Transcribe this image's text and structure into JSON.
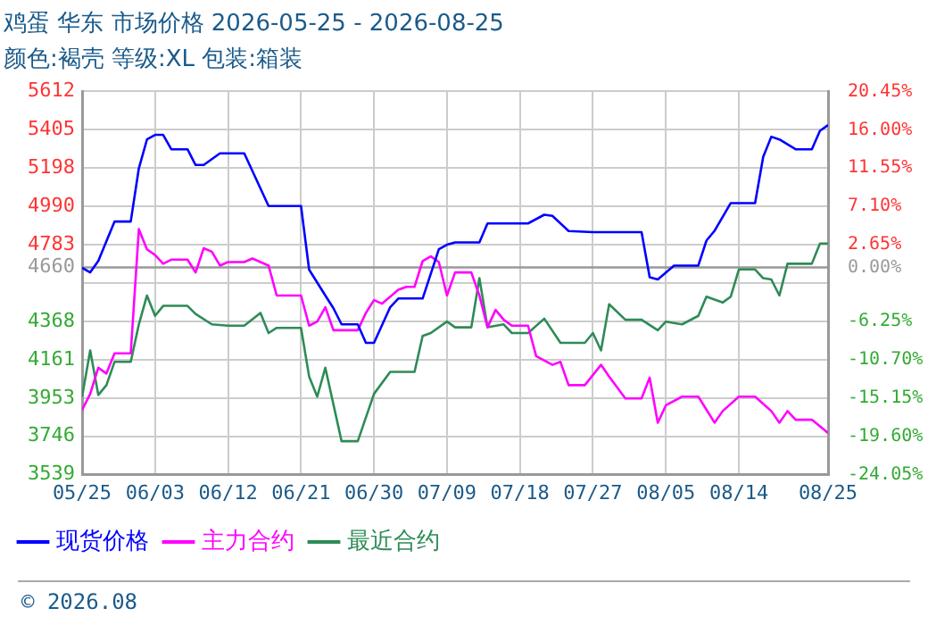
{
  "chart_data": {
    "type": "line",
    "title": "鸡蛋 华东 市场价格 2026-05-25 - 2026-08-25",
    "subtitle": "颜色:褐壳 等级:XL 包装:箱装",
    "xlim": [
      "2026-05-25",
      "2026-08-25"
    ],
    "xticks": [
      {
        "value": "2026-05-25",
        "label": "05/25"
      },
      {
        "value": "2026-06-03",
        "label": "06/03"
      },
      {
        "value": "2026-06-12",
        "label": "06/12"
      },
      {
        "value": "2026-06-21",
        "label": "06/21"
      },
      {
        "value": "2026-06-30",
        "label": "06/30"
      },
      {
        "value": "2026-07-09",
        "label": "07/09"
      },
      {
        "value": "2026-07-18",
        "label": "07/18"
      },
      {
        "value": "2026-07-27",
        "label": "07/27"
      },
      {
        "value": "2026-08-05",
        "label": "08/05"
      },
      {
        "value": "2026-08-14",
        "label": "08/14"
      },
      {
        "value": "2026-08-25",
        "label": "08/25"
      }
    ],
    "ylim": [
      3539,
      5612
    ],
    "yticks": [
      3539,
      3746,
      3953,
      4161,
      4368,
      {
        "value": 4576,
        "label": null
      },
      4783,
      4990,
      5198,
      5405,
      5612
    ],
    "y2lim": [
      -24.05,
      20.45
    ],
    "y2ticks": [
      {
        "value": -24.05,
        "label": "-24.05%"
      },
      {
        "value": -19.6,
        "label": "-19.60%"
      },
      {
        "value": -15.15,
        "label": "-15.15%"
      },
      {
        "value": -10.7,
        "label": "-10.70%"
      },
      {
        "value": -6.25,
        "label": "-6.25%"
      },
      {
        "value": -1.8,
        "label": null
      },
      {
        "value": 0,
        "label": "0.00%"
      },
      {
        "value": 2.65,
        "label": "2.65%"
      },
      {
        "value": 7.1,
        "label": "7.10%"
      },
      {
        "value": 11.55,
        "label": "11.55%"
      },
      {
        "value": 16,
        "label": "16.00%"
      },
      {
        "value": 20.45,
        "label": "20.45%"
      }
    ],
    "ref_lines": [
      {
        "axis": "y",
        "value": 4660,
        "label": "4660",
        "color": "#999999"
      }
    ],
    "grid": true,
    "legend": "bottom",
    "marker": "none",
    "annotations": [
      "© 2026.08"
    ],
    "series": [
      {
        "name": "现货价格",
        "color": "#0000ff",
        "x": [
          "2026-05-25",
          "2026-05-26",
          "2026-05-27",
          "2026-05-29",
          "2026-05-31",
          "2026-06-01",
          "2026-06-02",
          "2026-06-03",
          "2026-06-04",
          "2026-06-05",
          "2026-06-07",
          "2026-06-08",
          "2026-06-09",
          "2026-06-11",
          "2026-06-14",
          "2026-06-17",
          "2026-06-21",
          "2026-06-22",
          "2026-06-24",
          "2026-06-25",
          "2026-06-26",
          "2026-06-28",
          "2026-06-29",
          "2026-06-30",
          "2026-07-02",
          "2026-07-03",
          "2026-07-06",
          "2026-07-08",
          "2026-07-09",
          "2026-07-10",
          "2026-07-13",
          "2026-07-14",
          "2026-07-19",
          "2026-07-21",
          "2026-07-22",
          "2026-07-24",
          "2026-07-27",
          "2026-08-02",
          "2026-08-03",
          "2026-08-04",
          "2026-08-06",
          "2026-08-09",
          "2026-08-10",
          "2026-08-11",
          "2026-08-13",
          "2026-08-16",
          "2026-08-17",
          "2026-08-18",
          "2026-08-19",
          "2026-08-21",
          "2026-08-23",
          "2026-08-24",
          "2026-08-25"
        ],
        "values": [
          4658,
          4633,
          4695,
          4908,
          4908,
          5196,
          5352,
          5377,
          5377,
          5299,
          5299,
          5214,
          5214,
          5277,
          5277,
          4992,
          4992,
          4648,
          4508,
          4439,
          4352,
          4352,
          4252,
          4252,
          4445,
          4492,
          4492,
          4758,
          4783,
          4795,
          4795,
          4898,
          4898,
          4945,
          4939,
          4857,
          4851,
          4851,
          4607,
          4595,
          4670,
          4670,
          4805,
          4858,
          5008,
          5008,
          5258,
          5367,
          5352,
          5299,
          5299,
          5399,
          5430
        ]
      },
      {
        "name": "主力合约",
        "color": "#ff00ff",
        "x": [
          "2026-05-25",
          "2026-05-26",
          "2026-05-27",
          "2026-05-28",
          "2026-05-29",
          "2026-05-31",
          "2026-06-01",
          "2026-06-02",
          "2026-06-03",
          "2026-06-04",
          "2026-06-05",
          "2026-06-07",
          "2026-06-08",
          "2026-06-09",
          "2026-06-10",
          "2026-06-11",
          "2026-06-12",
          "2026-06-14",
          "2026-06-15",
          "2026-06-17",
          "2026-06-18",
          "2026-06-21",
          "2026-06-22",
          "2026-06-23",
          "2026-06-24",
          "2026-06-25",
          "2026-06-28",
          "2026-06-29",
          "2026-06-30",
          "2026-07-01",
          "2026-07-03",
          "2026-07-04",
          "2026-07-05",
          "2026-07-06",
          "2026-07-07",
          "2026-07-08",
          "2026-07-09",
          "2026-07-10",
          "2026-07-12",
          "2026-07-13",
          "2026-07-14",
          "2026-07-15",
          "2026-07-16",
          "2026-07-17",
          "2026-07-19",
          "2026-07-20",
          "2026-07-22",
          "2026-07-23",
          "2026-07-24",
          "2026-07-26",
          "2026-07-28",
          "2026-07-29",
          "2026-07-31",
          "2026-08-02",
          "2026-08-03",
          "2026-08-04",
          "2026-08-05",
          "2026-08-07",
          "2026-08-09",
          "2026-08-11",
          "2026-08-12",
          "2026-08-14",
          "2026-08-16",
          "2026-08-18",
          "2026-08-19",
          "2026-08-20",
          "2026-08-21",
          "2026-08-23",
          "2026-08-25"
        ],
        "values": [
          3889,
          3976,
          4117,
          4086,
          4195,
          4195,
          4867,
          4758,
          4727,
          4680,
          4702,
          4702,
          4633,
          4764,
          4745,
          4670,
          4689,
          4689,
          4708,
          4670,
          4508,
          4508,
          4345,
          4367,
          4445,
          4320,
          4320,
          4414,
          4483,
          4464,
          4539,
          4555,
          4555,
          4695,
          4720,
          4689,
          4508,
          4633,
          4633,
          4508,
          4336,
          4430,
          4377,
          4345,
          4345,
          4180,
          4133,
          4149,
          4023,
          4023,
          4133,
          4070,
          3951,
          3951,
          4064,
          3820,
          3914,
          3961,
          3961,
          3820,
          3883,
          3961,
          3961,
          3883,
          3820,
          3883,
          3836,
          3836,
          3764
        ]
      },
      {
        "name": "最近合约",
        "color": "#2e8b57",
        "x": [
          "2026-05-25",
          "2026-05-26",
          "2026-05-27",
          "2026-05-28",
          "2026-05-29",
          "2026-05-31",
          "2026-06-01",
          "2026-06-02",
          "2026-06-03",
          "2026-06-04",
          "2026-06-07",
          "2026-06-08",
          "2026-06-10",
          "2026-06-12",
          "2026-06-14",
          "2026-06-16",
          "2026-06-17",
          "2026-06-18",
          "2026-06-21",
          "2026-06-22",
          "2026-06-23",
          "2026-06-24",
          "2026-06-26",
          "2026-06-28",
          "2026-06-30",
          "2026-07-02",
          "2026-07-05",
          "2026-07-06",
          "2026-07-07",
          "2026-07-09",
          "2026-07-10",
          "2026-07-12",
          "2026-07-13",
          "2026-07-14",
          "2026-07-16",
          "2026-07-17",
          "2026-07-19",
          "2026-07-21",
          "2026-07-23",
          "2026-07-26",
          "2026-07-27",
          "2026-07-28",
          "2026-07-29",
          "2026-07-31",
          "2026-08-02",
          "2026-08-04",
          "2026-08-05",
          "2026-08-07",
          "2026-08-09",
          "2026-08-10",
          "2026-08-12",
          "2026-08-13",
          "2026-08-14",
          "2026-08-16",
          "2026-08-17",
          "2026-08-18",
          "2026-08-19",
          "2026-08-20",
          "2026-08-23",
          "2026-08-24",
          "2026-08-25"
        ],
        "values": [
          3961,
          4211,
          3970,
          4023,
          4149,
          4149,
          4352,
          4508,
          4398,
          4452,
          4452,
          4408,
          4352,
          4345,
          4345,
          4414,
          4305,
          4333,
          4333,
          4070,
          3961,
          4117,
          3720,
          3720,
          3976,
          4095,
          4095,
          4289,
          4305,
          4367,
          4336,
          4336,
          4602,
          4336,
          4352,
          4305,
          4305,
          4383,
          4252,
          4252,
          4305,
          4211,
          4461,
          4377,
          4377,
          4320,
          4367,
          4352,
          4398,
          4502,
          4470,
          4502,
          4649,
          4649,
          4602,
          4595,
          4508,
          4680,
          4680,
          4789,
          4789
        ]
      }
    ]
  }
}
